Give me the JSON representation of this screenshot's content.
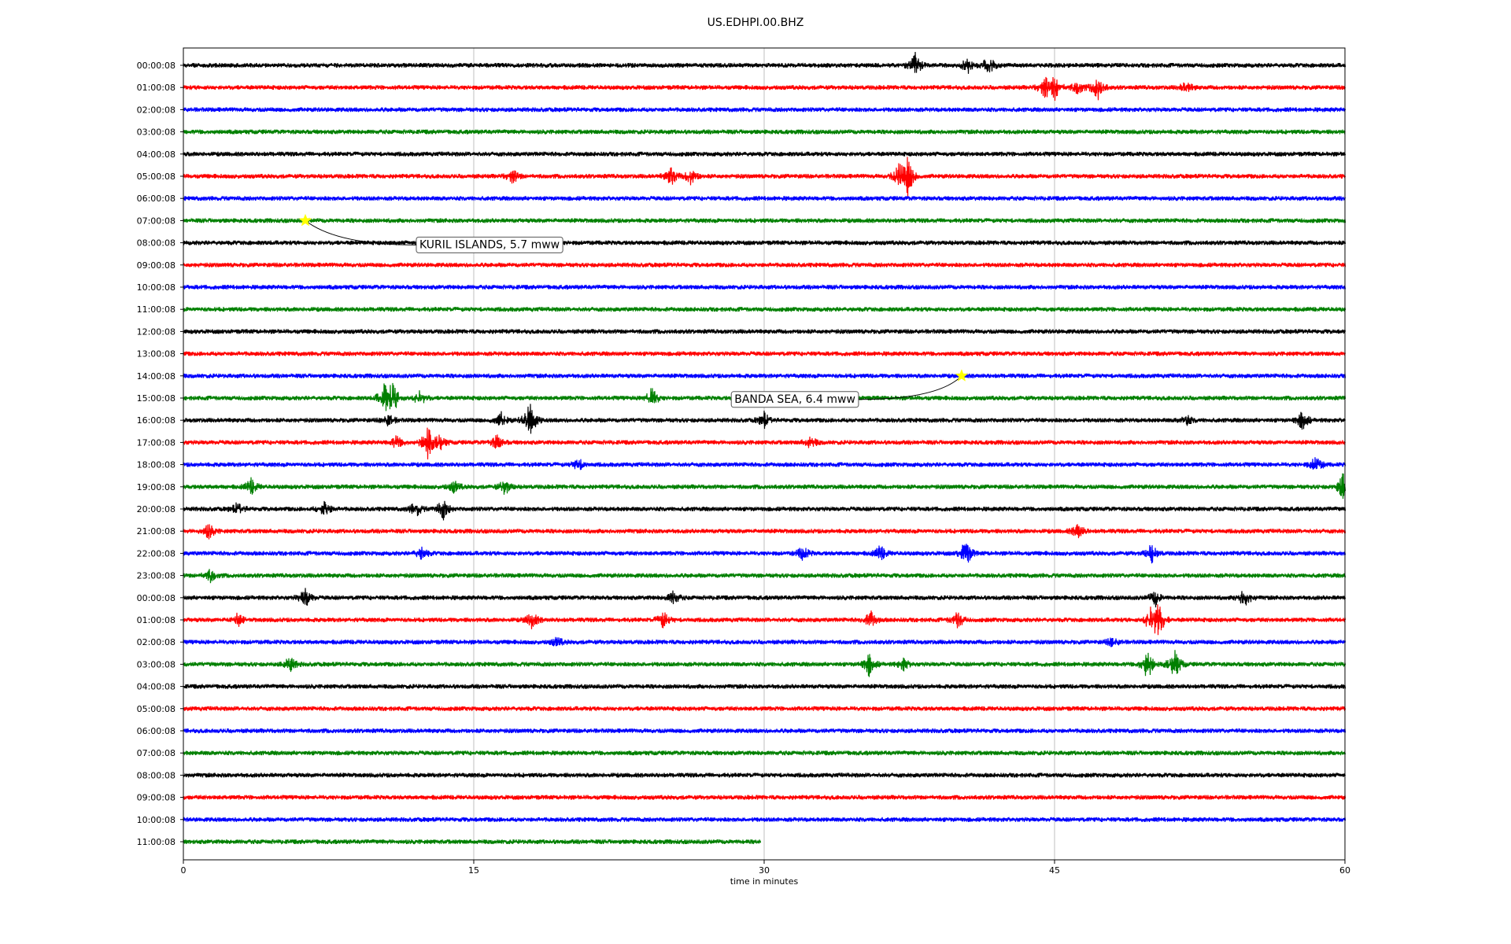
{
  "chart_data": {
    "type": "line",
    "title": "US.EDHPI.00.BHZ",
    "xlabel": "time in minutes",
    "ylabel": "",
    "xlim": [
      0,
      60
    ],
    "x_ticks": [
      0,
      15,
      30,
      45,
      60
    ],
    "grid": "vertical at x ticks",
    "trace_colors": [
      "#000000",
      "#ff0000",
      "#0000ff",
      "#008000"
    ],
    "rows": [
      {
        "label": "00:00:08",
        "color": "#000000",
        "end_minute": 60,
        "bursts": [
          {
            "t": 37.8,
            "amp": 0.9
          },
          {
            "t": 40.5,
            "amp": 0.6
          },
          {
            "t": 41.6,
            "amp": 0.8
          }
        ]
      },
      {
        "label": "01:00:08",
        "color": "#ff0000",
        "end_minute": 60,
        "bursts": [
          {
            "t": 44.5,
            "amp": 1.0
          },
          {
            "t": 45.0,
            "amp": 1.1
          },
          {
            "t": 46.2,
            "amp": 0.6
          },
          {
            "t": 47.2,
            "amp": 1.0
          },
          {
            "t": 51.8,
            "amp": 0.5
          }
        ]
      },
      {
        "label": "02:00:08",
        "color": "#0000ff",
        "end_minute": 60,
        "bursts": []
      },
      {
        "label": "03:00:08",
        "color": "#008000",
        "end_minute": 60,
        "bursts": []
      },
      {
        "label": "04:00:08",
        "color": "#000000",
        "end_minute": 60,
        "bursts": []
      },
      {
        "label": "05:00:08",
        "color": "#ff0000",
        "end_minute": 60,
        "bursts": [
          {
            "t": 17.0,
            "amp": 0.6
          },
          {
            "t": 25.2,
            "amp": 0.8
          },
          {
            "t": 26.2,
            "amp": 0.7
          },
          {
            "t": 37.0,
            "amp": 1.3
          },
          {
            "t": 37.4,
            "amp": 1.8
          }
        ]
      },
      {
        "label": "06:00:08",
        "color": "#0000ff",
        "end_minute": 60,
        "bursts": []
      },
      {
        "label": "07:00:08",
        "color": "#008000",
        "end_minute": 60,
        "bursts": []
      },
      {
        "label": "08:00:08",
        "color": "#000000",
        "end_minute": 60,
        "bursts": []
      },
      {
        "label": "09:00:08",
        "color": "#ff0000",
        "end_minute": 60,
        "bursts": []
      },
      {
        "label": "10:00:08",
        "color": "#0000ff",
        "end_minute": 60,
        "bursts": []
      },
      {
        "label": "11:00:08",
        "color": "#008000",
        "end_minute": 60,
        "bursts": []
      },
      {
        "label": "12:00:08",
        "color": "#000000",
        "end_minute": 60,
        "bursts": []
      },
      {
        "label": "13:00:08",
        "color": "#ff0000",
        "end_minute": 60,
        "bursts": []
      },
      {
        "label": "14:00:08",
        "color": "#0000ff",
        "end_minute": 60,
        "bursts": []
      },
      {
        "label": "15:00:08",
        "color": "#008000",
        "end_minute": 60,
        "bursts": [
          {
            "t": 10.4,
            "amp": 1.3
          },
          {
            "t": 10.8,
            "amp": 1.5
          },
          {
            "t": 12.2,
            "amp": 0.7
          },
          {
            "t": 24.2,
            "amp": 0.8
          }
        ]
      },
      {
        "label": "16:00:08",
        "color": "#000000",
        "end_minute": 60,
        "bursts": [
          {
            "t": 10.6,
            "amp": 0.5
          },
          {
            "t": 16.4,
            "amp": 0.6
          },
          {
            "t": 17.9,
            "amp": 1.5
          },
          {
            "t": 30.0,
            "amp": 0.6
          },
          {
            "t": 51.8,
            "amp": 0.4
          },
          {
            "t": 57.8,
            "amp": 0.8
          }
        ]
      },
      {
        "label": "17:00:08",
        "color": "#ff0000",
        "end_minute": 60,
        "bursts": [
          {
            "t": 11.0,
            "amp": 0.5
          },
          {
            "t": 12.6,
            "amp": 1.5
          },
          {
            "t": 13.2,
            "amp": 0.7
          },
          {
            "t": 16.2,
            "amp": 0.6
          },
          {
            "t": 32.4,
            "amp": 0.5
          }
        ]
      },
      {
        "label": "18:00:08",
        "color": "#0000ff",
        "end_minute": 60,
        "bursts": [
          {
            "t": 20.4,
            "amp": 0.5
          },
          {
            "t": 58.5,
            "amp": 0.7
          }
        ]
      },
      {
        "label": "19:00:08",
        "color": "#008000",
        "end_minute": 60,
        "bursts": [
          {
            "t": 3.5,
            "amp": 0.6
          },
          {
            "t": 14.0,
            "amp": 0.5
          },
          {
            "t": 16.6,
            "amp": 0.6
          },
          {
            "t": 59.9,
            "amp": 1.2
          }
        ]
      },
      {
        "label": "20:00:08",
        "color": "#000000",
        "end_minute": 60,
        "bursts": [
          {
            "t": 2.8,
            "amp": 0.5
          },
          {
            "t": 7.3,
            "amp": 0.7
          },
          {
            "t": 12.0,
            "amp": 0.6
          },
          {
            "t": 13.4,
            "amp": 0.8
          }
        ]
      },
      {
        "label": "21:00:08",
        "color": "#ff0000",
        "end_minute": 60,
        "bursts": [
          {
            "t": 1.3,
            "amp": 0.6
          },
          {
            "t": 46.2,
            "amp": 0.6
          }
        ]
      },
      {
        "label": "22:00:08",
        "color": "#0000ff",
        "end_minute": 60,
        "bursts": [
          {
            "t": 12.3,
            "amp": 0.5
          },
          {
            "t": 32.0,
            "amp": 0.6
          },
          {
            "t": 36.0,
            "amp": 0.6
          },
          {
            "t": 40.4,
            "amp": 1.1
          },
          {
            "t": 50.0,
            "amp": 0.7
          }
        ]
      },
      {
        "label": "23:00:08",
        "color": "#008000",
        "end_minute": 60,
        "bursts": [
          {
            "t": 1.4,
            "amp": 0.5
          }
        ]
      },
      {
        "label": "00:00:08",
        "color": "#000000",
        "end_minute": 60,
        "bursts": [
          {
            "t": 6.3,
            "amp": 0.8
          },
          {
            "t": 25.3,
            "amp": 0.5
          },
          {
            "t": 50.2,
            "amp": 0.6
          },
          {
            "t": 54.8,
            "amp": 0.8
          }
        ]
      },
      {
        "label": "01:00:08",
        "color": "#ff0000",
        "end_minute": 60,
        "bursts": [
          {
            "t": 2.8,
            "amp": 0.5
          },
          {
            "t": 18.0,
            "amp": 0.7
          },
          {
            "t": 24.8,
            "amp": 0.7
          },
          {
            "t": 35.5,
            "amp": 0.7
          },
          {
            "t": 40.0,
            "amp": 0.7
          },
          {
            "t": 50.0,
            "amp": 1.6
          },
          {
            "t": 50.3,
            "amp": 2.0
          }
        ]
      },
      {
        "label": "02:00:08",
        "color": "#0000ff",
        "end_minute": 60,
        "bursts": [
          {
            "t": 19.3,
            "amp": 0.4
          },
          {
            "t": 48.0,
            "amp": 0.4
          }
        ]
      },
      {
        "label": "03:00:08",
        "color": "#008000",
        "end_minute": 60,
        "bursts": [
          {
            "t": 5.5,
            "amp": 0.6
          },
          {
            "t": 35.4,
            "amp": 0.9
          },
          {
            "t": 37.2,
            "amp": 0.5
          },
          {
            "t": 49.8,
            "amp": 1.4
          },
          {
            "t": 51.2,
            "amp": 1.2
          }
        ]
      },
      {
        "label": "04:00:08",
        "color": "#000000",
        "end_minute": 60,
        "bursts": []
      },
      {
        "label": "05:00:08",
        "color": "#ff0000",
        "end_minute": 60,
        "bursts": []
      },
      {
        "label": "06:00:08",
        "color": "#0000ff",
        "end_minute": 60,
        "bursts": []
      },
      {
        "label": "07:00:08",
        "color": "#008000",
        "end_minute": 60,
        "bursts": []
      },
      {
        "label": "08:00:08",
        "color": "#000000",
        "end_minute": 60,
        "bursts": []
      },
      {
        "label": "09:00:08",
        "color": "#ff0000",
        "end_minute": 60,
        "bursts": []
      },
      {
        "label": "10:00:08",
        "color": "#0000ff",
        "end_minute": 60,
        "bursts": []
      },
      {
        "label": "11:00:08",
        "color": "#008000",
        "end_minute": 29.8,
        "bursts": []
      }
    ],
    "events": [
      {
        "label": "KURIL ISLANDS, 5.7 mww",
        "row": 7,
        "minute": 6.3,
        "marker_color": "#ffff00"
      },
      {
        "label": "BANDA SEA, 6.4 mww",
        "row": 14,
        "minute": 40.2,
        "marker_color": "#ffff00"
      }
    ]
  }
}
